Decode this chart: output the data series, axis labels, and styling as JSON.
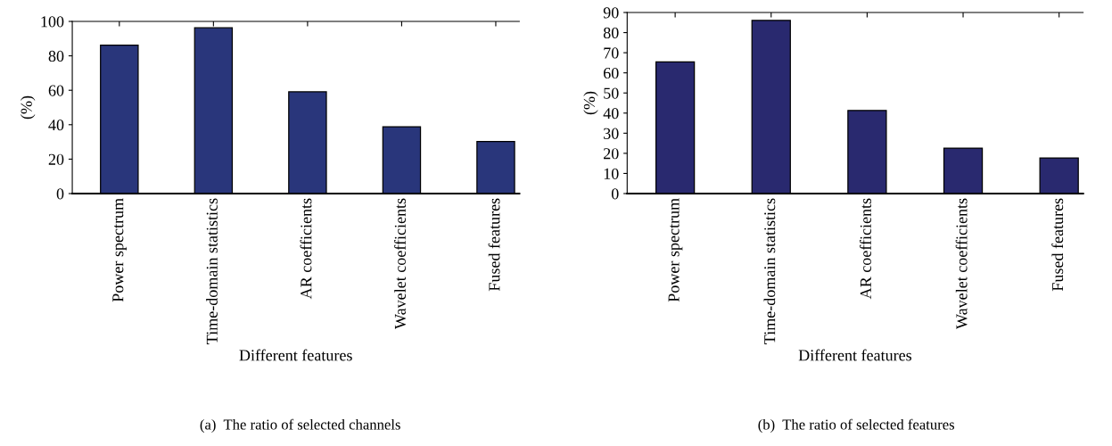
{
  "chart_data": [
    {
      "type": "bar",
      "categories": [
        "Power spectrum",
        "Time-domain statistics",
        "AR coefficients",
        "Wavelet coefficients",
        "Fused features"
      ],
      "values": [
        86.2,
        96.3,
        59.1,
        38.8,
        30.3
      ],
      "color": "#29367b",
      "ylim": [
        0,
        100
      ],
      "yticks": [
        0,
        20,
        40,
        60,
        80,
        100
      ],
      "xlabel": "Different features",
      "ylabel": "(%)",
      "annotations": [
        "(a)  The ratio of selected channels"
      ],
      "grid": false,
      "legend": false
    },
    {
      "type": "bar",
      "categories": [
        "Power spectrum",
        "Time-domain statistics",
        "AR coefficients",
        "Wavelet coefficients",
        "Fused features"
      ],
      "values": [
        65.5,
        86.1,
        41.3,
        22.6,
        17.7
      ],
      "color": "#29296f",
      "ylim": [
        0,
        90
      ],
      "yticks": [
        0,
        10,
        20,
        30,
        40,
        50,
        60,
        70,
        80,
        90
      ],
      "xlabel": "Different features",
      "ylabel": "(%)",
      "annotations": [
        "(b)  The ratio of selected features"
      ],
      "grid": false,
      "legend": false
    }
  ]
}
